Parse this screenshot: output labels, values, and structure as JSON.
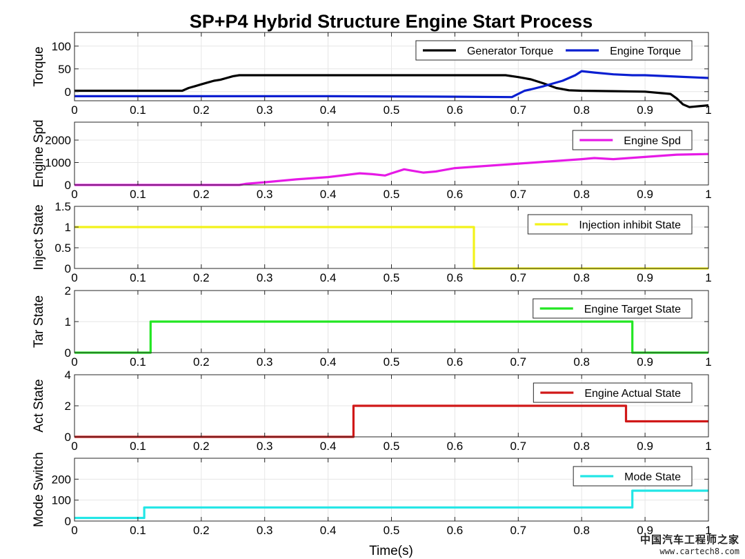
{
  "title": "SP+P4 Hybrid Structure Engine Start Process",
  "xlabel": "Time(s)",
  "watermark": {
    "line1": "中国汽车工程师之家",
    "line2": "www.cartech8.com"
  },
  "colors": {
    "grid": "#e6e6e6",
    "axes": "#262626"
  },
  "chart_data": [
    {
      "type": "line",
      "ylabel": "Torque",
      "xlim": [
        0,
        1
      ],
      "ylim": [
        -20,
        130
      ],
      "yticks": [
        0,
        50,
        100
      ],
      "xticks": [
        0,
        0.1,
        0.2,
        0.3,
        0.4,
        0.5,
        0.6,
        0.7,
        0.8,
        0.9,
        1
      ],
      "grid": true,
      "legend_position": "top-right",
      "series": [
        {
          "name": "Generator Torque",
          "color": "#000000",
          "x": [
            0,
            0.17,
            0.18,
            0.19,
            0.2,
            0.21,
            0.22,
            0.23,
            0.24,
            0.25,
            0.26,
            0.27,
            0.4,
            0.6,
            0.68,
            0.7,
            0.72,
            0.74,
            0.76,
            0.78,
            0.8,
            0.85,
            0.9,
            0.94,
            0.95,
            0.96,
            0.97,
            1.0
          ],
          "y": [
            2,
            2,
            8,
            12,
            16,
            20,
            24,
            26,
            30,
            34,
            36,
            36,
            36,
            36,
            36,
            32,
            27,
            18,
            8,
            3,
            2,
            1,
            0,
            -5,
            -15,
            -28,
            -34,
            -30
          ]
        },
        {
          "name": "Engine Torque",
          "color": "#0a1fd1",
          "x": [
            0,
            0.2,
            0.4,
            0.6,
            0.69,
            0.7,
            0.71,
            0.72,
            0.74,
            0.76,
            0.77,
            0.78,
            0.79,
            0.8,
            0.82,
            0.85,
            0.88,
            0.9,
            0.95,
            1.0
          ],
          "y": [
            -10,
            -10,
            -10,
            -11,
            -12,
            -5,
            2,
            5,
            12,
            20,
            24,
            30,
            36,
            45,
            42,
            38,
            36,
            36,
            33,
            30
          ]
        }
      ]
    },
    {
      "type": "line",
      "ylabel": "Engine Spd",
      "xlim": [
        0,
        1
      ],
      "ylim": [
        0,
        2800
      ],
      "yticks": [
        0,
        1000,
        2000
      ],
      "xticks": [
        0,
        0.1,
        0.2,
        0.3,
        0.4,
        0.5,
        0.6,
        0.7,
        0.8,
        0.9,
        1
      ],
      "grid": true,
      "legend_position": "top-right",
      "series": [
        {
          "name": "Engine Spd",
          "color": "#e61ae6",
          "x": [
            0,
            0.26,
            0.27,
            0.3,
            0.35,
            0.4,
            0.43,
            0.45,
            0.47,
            0.49,
            0.5,
            0.52,
            0.53,
            0.55,
            0.57,
            0.6,
            0.65,
            0.7,
            0.75,
            0.8,
            0.82,
            0.85,
            0.9,
            0.95,
            1.0
          ],
          "y": [
            0,
            0,
            50,
            120,
            250,
            350,
            450,
            520,
            480,
            420,
            520,
            700,
            650,
            550,
            600,
            750,
            850,
            950,
            1050,
            1150,
            1200,
            1150,
            1250,
            1350,
            1380
          ]
        }
      ]
    },
    {
      "type": "line",
      "ylabel": "Inject State",
      "xlim": [
        0,
        1
      ],
      "ylim": [
        0,
        1.5
      ],
      "yticks": [
        0,
        0.5,
        1,
        1.5
      ],
      "xticks": [
        0,
        0.1,
        0.2,
        0.3,
        0.4,
        0.5,
        0.6,
        0.7,
        0.8,
        0.9,
        1
      ],
      "grid": true,
      "legend_position": "top-right",
      "series": [
        {
          "name": "Injection inhibit State",
          "color": "#f2f21a",
          "x": [
            0,
            0.63,
            0.63,
            1.0
          ],
          "y": [
            1,
            1,
            0,
            0
          ]
        }
      ]
    },
    {
      "type": "line",
      "ylabel": "Tar State",
      "xlim": [
        0,
        1
      ],
      "ylim": [
        0,
        2
      ],
      "yticks": [
        0,
        1,
        2
      ],
      "xticks": [
        0,
        0.1,
        0.2,
        0.3,
        0.4,
        0.5,
        0.6,
        0.7,
        0.8,
        0.9,
        1
      ],
      "grid": true,
      "legend_position": "top-right",
      "series": [
        {
          "name": "Engine Target State",
          "color": "#22e622",
          "x": [
            0,
            0.12,
            0.12,
            0.88,
            0.88,
            1.0
          ],
          "y": [
            0,
            0,
            1,
            1,
            0,
            0
          ]
        }
      ]
    },
    {
      "type": "line",
      "ylabel": "Act State",
      "xlim": [
        0,
        1
      ],
      "ylim": [
        0,
        4
      ],
      "yticks": [
        0,
        2,
        4
      ],
      "xticks": [
        0,
        0.1,
        0.2,
        0.3,
        0.4,
        0.5,
        0.6,
        0.7,
        0.8,
        0.9,
        1
      ],
      "grid": true,
      "legend_position": "top-right",
      "series": [
        {
          "name": "Engine Actual State",
          "color": "#d01818",
          "x": [
            0,
            0.44,
            0.44,
            0.87,
            0.87,
            1.0
          ],
          "y": [
            0,
            0,
            2,
            2,
            1,
            1
          ]
        }
      ]
    },
    {
      "type": "line",
      "ylabel": "Mode Switch",
      "xlim": [
        0,
        1
      ],
      "ylim": [
        0,
        300
      ],
      "yticks": [
        0,
        100,
        200
      ],
      "xticks": [
        0,
        0.1,
        0.2,
        0.3,
        0.4,
        0.5,
        0.6,
        0.7,
        0.8,
        0.9,
        1
      ],
      "grid": true,
      "legend_position": "top-right",
      "series": [
        {
          "name": "Mode State",
          "color": "#22e6e6",
          "x": [
            0,
            0.11,
            0.11,
            0.88,
            0.88,
            1.0
          ],
          "y": [
            15,
            15,
            65,
            65,
            145,
            145
          ]
        }
      ]
    }
  ]
}
